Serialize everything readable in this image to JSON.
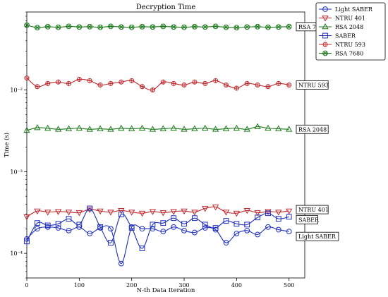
{
  "chart_data": {
    "type": "line",
    "title": "Decryption Time",
    "xlabel": "N-th Data Iteration",
    "ylabel": "Time (s)",
    "xlim": [
      0,
      530
    ],
    "ylim": [
      5e-05,
      0.09
    ],
    "yscale": "log",
    "xticks": [
      0,
      100,
      200,
      300,
      400,
      500
    ],
    "yticks": [
      {
        "value": 0.0001,
        "label": "10⁻⁴"
      },
      {
        "value": 0.001,
        "label": "10⁻³"
      },
      {
        "value": 0.01,
        "label": "10⁻²"
      }
    ],
    "legend_position": "outside-top-right",
    "x": [
      0,
      20,
      40,
      60,
      80,
      100,
      120,
      140,
      160,
      180,
      200,
      220,
      240,
      260,
      280,
      300,
      320,
      340,
      360,
      380,
      400,
      420,
      440,
      460,
      480,
      500
    ],
    "series": [
      {
        "name": "Light SABER",
        "color": "#1f2fbf",
        "marker": "circle",
        "values": [
          0.00015,
          0.0002,
          0.00021,
          0.000205,
          0.00019,
          0.00021,
          0.000175,
          0.000205,
          0.0002,
          7.5e-05,
          0.00021,
          0.0002,
          0.0002,
          0.000185,
          0.00021,
          0.00019,
          0.00018,
          0.000205,
          0.000195,
          0.000135,
          0.000175,
          0.00019,
          0.00017,
          0.00021,
          0.000195,
          0.000185
        ]
      },
      {
        "name": "NTRU 401",
        "color": "#c0282d",
        "marker": "triangle-down",
        "values": [
          0.00028,
          0.00033,
          0.00032,
          0.000325,
          0.00032,
          0.000315,
          0.000345,
          0.00033,
          0.00032,
          0.000335,
          0.00032,
          0.00031,
          0.000325,
          0.000315,
          0.000325,
          0.00033,
          0.00032,
          0.000355,
          0.00037,
          0.00032,
          0.00031,
          0.000335,
          0.000315,
          0.000325,
          0.00032,
          0.00033
        ]
      },
      {
        "name": "RSA 2048",
        "color": "#1d7a1d",
        "marker": "triangle-up",
        "values": [
          0.0032,
          0.00345,
          0.0034,
          0.0033,
          0.00335,
          0.0034,
          0.0033,
          0.00335,
          0.0033,
          0.0034,
          0.00335,
          0.0034,
          0.0033,
          0.00335,
          0.0034,
          0.0033,
          0.00335,
          0.0034,
          0.0033,
          0.00335,
          0.0034,
          0.0033,
          0.00355,
          0.0034,
          0.00335,
          0.0033
        ]
      },
      {
        "name": "SABER",
        "color": "#1f2fbf",
        "marker": "square",
        "values": [
          0.00014,
          0.000235,
          0.00022,
          0.00023,
          0.000265,
          0.000225,
          0.000355,
          0.00021,
          0.000135,
          0.0003,
          0.000205,
          0.000115,
          0.000225,
          0.000235,
          0.00027,
          0.00023,
          0.00027,
          0.000225,
          0.000205,
          0.00025,
          0.00023,
          0.000225,
          0.000275,
          0.00031,
          0.000265,
          0.00028
        ]
      },
      {
        "name": "NTRU 593",
        "color": "#c0282d",
        "marker": "diamond",
        "values": [
          0.014,
          0.011,
          0.012,
          0.0125,
          0.012,
          0.0135,
          0.013,
          0.0115,
          0.012,
          0.0125,
          0.013,
          0.011,
          0.01,
          0.0125,
          0.012,
          0.0115,
          0.0125,
          0.012,
          0.013,
          0.0115,
          0.0105,
          0.012,
          0.0115,
          0.011,
          0.012,
          0.0115
        ]
      },
      {
        "name": "RSA 7680",
        "color": "#1d7a1d",
        "marker": "x-circle",
        "values": [
          0.062,
          0.058,
          0.0595,
          0.0585,
          0.06,
          0.059,
          0.0595,
          0.0585,
          0.06,
          0.059,
          0.0585,
          0.0595,
          0.059,
          0.06,
          0.059,
          0.0585,
          0.0595,
          0.059,
          0.06,
          0.0585,
          0.058,
          0.059,
          0.0595,
          0.0585,
          0.059,
          0.0595
        ]
      }
    ],
    "annotations": [
      {
        "text": "RSA 7680",
        "series": "RSA 7680"
      },
      {
        "text": "NTRU 593",
        "series": "NTRU 593"
      },
      {
        "text": "RSA 2048",
        "series": "RSA 2048"
      },
      {
        "text": "NTRU 401",
        "series": "NTRU 401"
      },
      {
        "text": "SABER",
        "series": "SABER"
      },
      {
        "text": "Light SABER",
        "series": "Light SABER"
      }
    ]
  }
}
